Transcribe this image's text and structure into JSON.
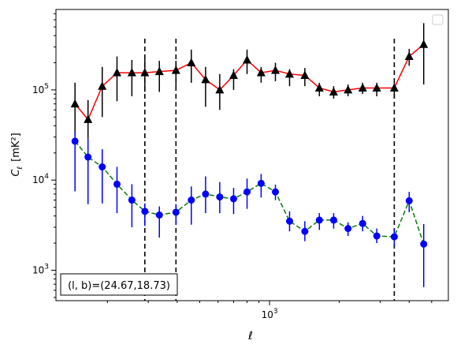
{
  "chart_data": {
    "type": "scatter",
    "xlabel": "ℓ",
    "ylabel_main": "C",
    "ylabel_sub": "ℓ",
    "ylabel_unit": "[mK²]",
    "x_scale": "log",
    "y_scale": "log",
    "xlim": [
      120,
      5900
    ],
    "ylim": [
      460,
      780000
    ],
    "x_tick_labels": [
      {
        "value": 1000,
        "base": "10",
        "exp": "3"
      }
    ],
    "y_tick_labels": [
      {
        "value": 1000,
        "base": "10",
        "exp": "3"
      },
      {
        "value": 10000,
        "base": "10",
        "exp": "4"
      },
      {
        "value": 100000,
        "base": "10",
        "exp": "5"
      }
    ],
    "grid": false,
    "legend": "top-right (empty)",
    "annotation": "(l, b)=(24.67,18.73)",
    "vlines_x": [
      290,
      395,
      3450
    ],
    "series": [
      {
        "color": "#ff0000",
        "marker": "triangle",
        "marker_color": "#000000",
        "errorbar_color": "#000000",
        "linestyle": "solid",
        "x": [
          145,
          165,
          190,
          220,
          255,
          290,
          335,
          395,
          460,
          530,
          610,
          700,
          800,
          920,
          1060,
          1220,
          1420,
          1640,
          1890,
          2180,
          2520,
          2900,
          3450,
          4000,
          4620
        ],
        "y": [
          70000,
          47000,
          110000,
          155000,
          155000,
          155000,
          160000,
          165000,
          200000,
          130000,
          100000,
          145000,
          215000,
          155000,
          165000,
          150000,
          145000,
          105000,
          95000,
          100000,
          105000,
          105000,
          105000,
          235000,
          320000
        ],
        "err_low": [
          40000,
          18000,
          60000,
          80000,
          70000,
          60000,
          65000,
          55000,
          80000,
          65000,
          40000,
          45000,
          65000,
          35000,
          40000,
          40000,
          35000,
          20000,
          15000,
          15000,
          15000,
          20000,
          25000,
          50000,
          205000
        ],
        "err_high": [
          50000,
          30000,
          70000,
          80000,
          60000,
          70000,
          50000,
          45000,
          80000,
          50000,
          50000,
          25000,
          65000,
          25000,
          35000,
          20000,
          30000,
          15000,
          15000,
          15000,
          15000,
          15000,
          15000,
          50000,
          230000
        ]
      },
      {
        "color": "#008000",
        "marker": "circle",
        "marker_color": "#0000ff",
        "errorbar_color": "#0000ff",
        "linestyle": "dashed",
        "x": [
          145,
          165,
          190,
          220,
          255,
          290,
          335,
          395,
          460,
          530,
          610,
          700,
          800,
          920,
          1060,
          1220,
          1420,
          1640,
          1890,
          2180,
          2520,
          2900,
          3450,
          4000,
          4620
        ],
        "y": [
          27000,
          18000,
          14000,
          9000,
          6000,
          4500,
          4100,
          4400,
          6000,
          7000,
          6500,
          6200,
          7400,
          9200,
          7400,
          3500,
          2700,
          3600,
          3600,
          2900,
          3300,
          2400,
          2350,
          5900,
          1950
        ],
        "err_low": [
          19500,
          12600,
          8500,
          4700,
          3000,
          1400,
          1800,
          1200,
          2800,
          2700,
          2200,
          2000,
          2600,
          2800,
          1400,
          800,
          600,
          800,
          700,
          500,
          600,
          400,
          500,
          1500,
          1300
        ],
        "err_high": [
          8000,
          11000,
          8000,
          5000,
          3000,
          1000,
          1000,
          1000,
          2500,
          4000,
          3000,
          2000,
          3000,
          2500,
          1500,
          1000,
          800,
          700,
          700,
          500,
          700,
          500,
          500,
          1500,
          1300
        ]
      }
    ]
  }
}
